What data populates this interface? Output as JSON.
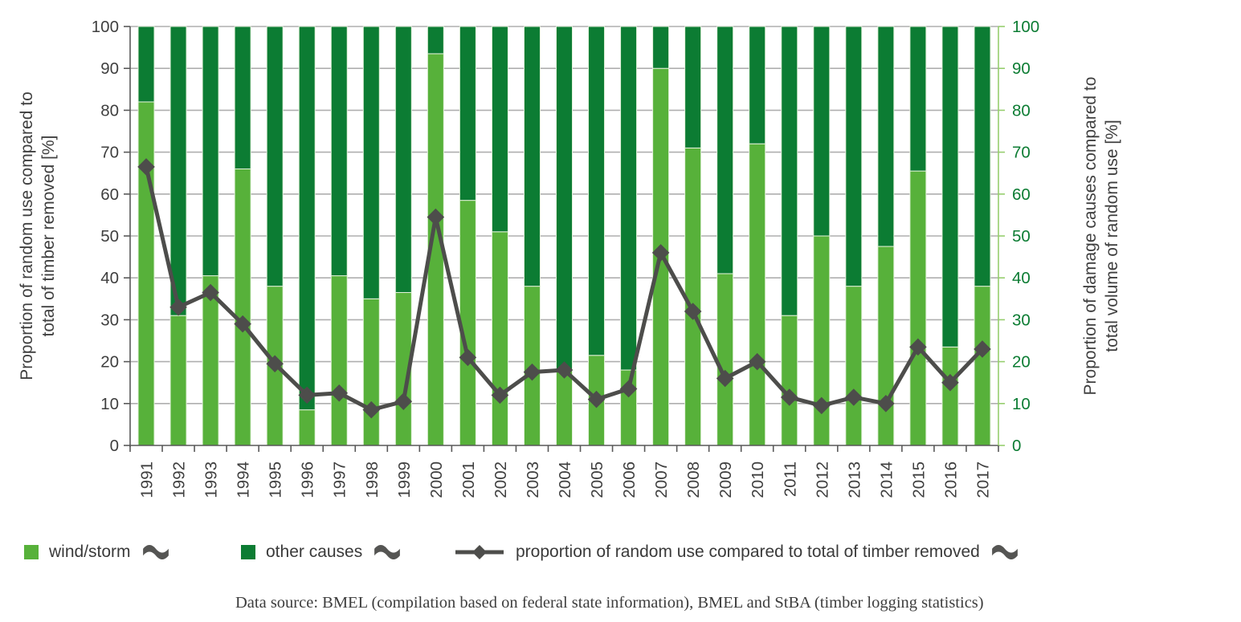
{
  "chart_data": {
    "type": "bar",
    "subtype": "stacked-100-bar-with-line",
    "categories": [
      1991,
      1992,
      1993,
      1994,
      1995,
      1996,
      1997,
      1998,
      1999,
      2000,
      2001,
      2002,
      2003,
      2004,
      2005,
      2006,
      2007,
      2008,
      2009,
      2010,
      2011,
      2012,
      2013,
      2014,
      2015,
      2016,
      2017
    ],
    "series": [
      {
        "name": "wind/storm",
        "type": "bar",
        "color": "#57B13A",
        "values": [
          82,
          31,
          40.5,
          66,
          38,
          8.5,
          40.5,
          35,
          36.5,
          93.5,
          58.5,
          51,
          38,
          18,
          21.5,
          18,
          90,
          71,
          41,
          72,
          31,
          50,
          38,
          47.5,
          65.5,
          23.5,
          38
        ]
      },
      {
        "name": "other causes",
        "type": "bar",
        "color": "#0C7C33",
        "values": [
          18,
          69,
          59.5,
          34,
          62,
          91.5,
          59.5,
          65,
          63.5,
          6.5,
          41.5,
          49,
          62,
          82,
          78.5,
          82,
          10,
          29,
          59,
          28,
          69,
          50,
          62,
          52.5,
          34.5,
          76.5,
          62
        ]
      },
      {
        "name": "proportion of random use compared to total of timber removed",
        "type": "line",
        "color": "#4D4D4B",
        "values": [
          66.5,
          33,
          36.5,
          29,
          19.5,
          12,
          12.5,
          8.5,
          10.5,
          54.5,
          21,
          12,
          17.5,
          18,
          11,
          13.5,
          46,
          32,
          16,
          20,
          11.5,
          9.5,
          11.5,
          10,
          23.5,
          15,
          23
        ]
      }
    ],
    "stack_total": 100,
    "left_axis": {
      "title_line1": "Proportion of random use compared to",
      "title_line2": "total of timber removed [%]",
      "min": 0,
      "max": 100,
      "step": 10,
      "label_color": "#3f3f3f"
    },
    "right_axis": {
      "title_line1": "Proportion of damage causes compared to",
      "title_line2": "total volume of random use [%]",
      "min": 0,
      "max": 100,
      "step": 10,
      "label_color": "#0C7C33",
      "axis_color": "#96CE6E"
    },
    "x_axis": {
      "label_color": "#3f3f3f"
    },
    "grid_color": "#AFAFAF",
    "axis_line_color": "#595959",
    "legend_position": "bottom"
  },
  "legend": {
    "flag_color": "#555553",
    "items": [
      {
        "label": "wind/storm",
        "swatch": "#57B13A",
        "icon": "flag"
      },
      {
        "label": "other causes",
        "swatch": "#0C7C33",
        "icon": "flag"
      },
      {
        "label": "proportion of random use compared to total of timber removed",
        "marker": "line-diamond",
        "icon": "flag"
      }
    ]
  },
  "source": {
    "text": "Data source: BMEL (compilation based on federal state information), BMEL and StBA (timber logging statistics)"
  }
}
